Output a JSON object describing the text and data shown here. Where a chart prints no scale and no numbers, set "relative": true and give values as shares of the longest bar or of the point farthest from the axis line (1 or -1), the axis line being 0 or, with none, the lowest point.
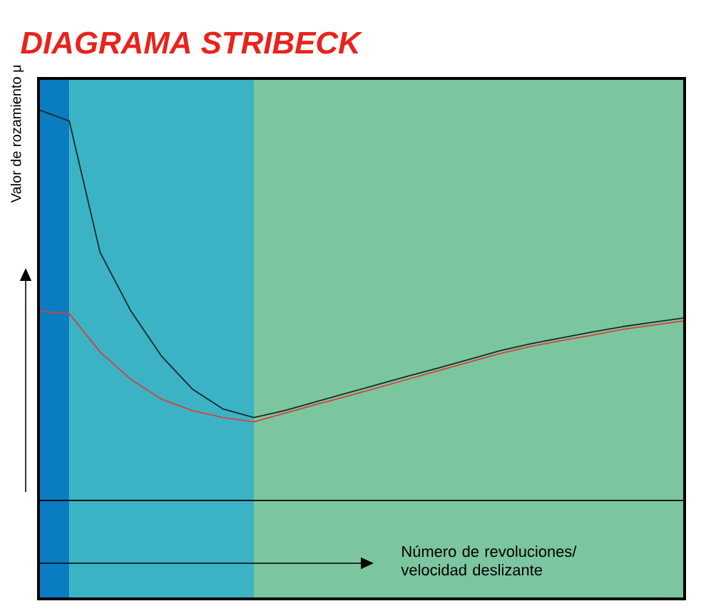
{
  "chart_data": {
    "type": "line",
    "title": "DIAGRAMA STRIBECK",
    "ylabel": "Valor de rozamiento μ",
    "xlabel": "Número de revoluciones/ velocidad deslizante",
    "relative": true,
    "categories": [
      null,
      null,
      null,
      null,
      null,
      null,
      null,
      null,
      null,
      null,
      null,
      null,
      null,
      null,
      null,
      null,
      null,
      null,
      null,
      null,
      null,
      null
    ],
    "series": [
      {
        "color": "#1a2a2a",
        "values": [
          1.0,
          0.971,
          0.635,
          0.485,
          0.369,
          0.285,
          0.234,
          0.212,
          0.23,
          0.252,
          0.274,
          0.296,
          0.318,
          0.339,
          0.361,
          0.383,
          0.401,
          0.416,
          0.431,
          0.445,
          0.456,
          0.467
        ]
      },
      {
        "color": "#d9403a",
        "values": [
          0.485,
          0.478,
          0.38,
          0.31,
          0.259,
          0.23,
          0.212,
          0.201,
          0.223,
          0.245,
          0.266,
          0.288,
          0.31,
          0.332,
          0.354,
          0.376,
          0.394,
          0.409,
          0.423,
          0.438,
          0.449,
          0.46
        ]
      }
    ]
  }
}
